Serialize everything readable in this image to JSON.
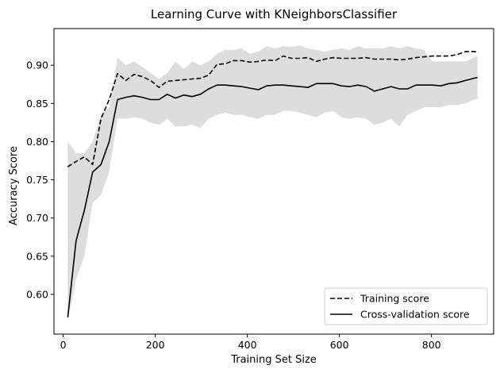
{
  "chart_data": {
    "type": "line",
    "title": "Learning Curve with KNeighborsClassifier",
    "xlabel": "Training Set Size",
    "ylabel": "Accuracy Score",
    "xlim": [
      -20,
      935
    ],
    "ylim": [
      0.548,
      0.948
    ],
    "xticks": [
      0,
      200,
      400,
      600,
      800
    ],
    "yticks": [
      0.6,
      0.65,
      0.7,
      0.75,
      0.8,
      0.85,
      0.9
    ],
    "ytick_labels": [
      "0.60",
      "0.65",
      "0.70",
      "0.75",
      "0.80",
      "0.85",
      "0.90"
    ],
    "grid": false,
    "legend_position": "lower right",
    "x": [
      10,
      28,
      46,
      64,
      82,
      100,
      118,
      136,
      154,
      172,
      190,
      208,
      226,
      244,
      262,
      280,
      298,
      316,
      334,
      352,
      370,
      388,
      406,
      424,
      442,
      460,
      478,
      496,
      514,
      532,
      550,
      568,
      586,
      604,
      622,
      640,
      658,
      676,
      694,
      712,
      730,
      748,
      766,
      784,
      802,
      820,
      838,
      856,
      874,
      892,
      900
    ],
    "series": [
      {
        "name": "Training score",
        "style": "dashed",
        "color": "#000000",
        "values": [
          0.767,
          0.774,
          0.78,
          0.77,
          0.83,
          0.855,
          0.889,
          0.88,
          0.888,
          0.885,
          0.88,
          0.871,
          0.879,
          0.88,
          0.881,
          0.882,
          0.883,
          0.887,
          0.901,
          0.902,
          0.906,
          0.906,
          0.904,
          0.905,
          0.907,
          0.906,
          0.912,
          0.909,
          0.909,
          0.91,
          0.905,
          0.908,
          0.91,
          0.909,
          0.909,
          0.909,
          0.91,
          0.908,
          0.908,
          0.908,
          0.907,
          0.908,
          0.91,
          0.911,
          0.912,
          0.912,
          0.912,
          0.914,
          0.918,
          0.918,
          0.917
        ]
      },
      {
        "name": "Cross-validation score",
        "style": "solid",
        "color": "#000000",
        "values": [
          0.57,
          0.67,
          0.71,
          0.76,
          0.77,
          0.8,
          0.855,
          0.858,
          0.86,
          0.858,
          0.855,
          0.855,
          0.862,
          0.857,
          0.861,
          0.859,
          0.862,
          0.869,
          0.874,
          0.874,
          0.873,
          0.872,
          0.87,
          0.868,
          0.873,
          0.874,
          0.874,
          0.873,
          0.872,
          0.871,
          0.876,
          0.876,
          0.876,
          0.873,
          0.872,
          0.874,
          0.872,
          0.866,
          0.869,
          0.872,
          0.869,
          0.869,
          0.874,
          0.874,
          0.874,
          0.873,
          0.876,
          0.877,
          0.88,
          0.883,
          0.884
        ]
      }
    ],
    "std_band": {
      "color": "#dddddd",
      "upper": [
        0.8,
        0.785,
        0.785,
        0.8,
        0.835,
        0.845,
        0.91,
        0.9,
        0.905,
        0.898,
        0.89,
        0.882,
        0.89,
        0.905,
        0.895,
        0.905,
        0.9,
        0.905,
        0.915,
        0.92,
        0.92,
        0.922,
        0.915,
        0.918,
        0.925,
        0.922,
        0.925,
        0.924,
        0.926,
        0.922,
        0.92,
        0.918,
        0.92,
        0.922,
        0.92,
        0.925,
        0.922,
        0.922,
        0.922,
        0.925,
        0.922,
        0.925,
        0.922,
        0.92,
        0.905,
        0.905,
        0.905,
        0.905,
        0.905,
        0.91,
        0.912
      ],
      "lower": [
        0.565,
        0.62,
        0.65,
        0.72,
        0.73,
        0.76,
        0.83,
        0.83,
        0.832,
        0.83,
        0.825,
        0.822,
        0.83,
        0.82,
        0.82,
        0.822,
        0.818,
        0.83,
        0.835,
        0.838,
        0.835,
        0.835,
        0.832,
        0.83,
        0.835,
        0.835,
        0.84,
        0.84,
        0.838,
        0.835,
        0.832,
        0.838,
        0.84,
        0.832,
        0.83,
        0.832,
        0.83,
        0.822,
        0.825,
        0.83,
        0.82,
        0.835,
        0.84,
        0.845,
        0.845,
        0.845,
        0.848,
        0.848,
        0.85,
        0.855,
        0.856
      ]
    }
  }
}
